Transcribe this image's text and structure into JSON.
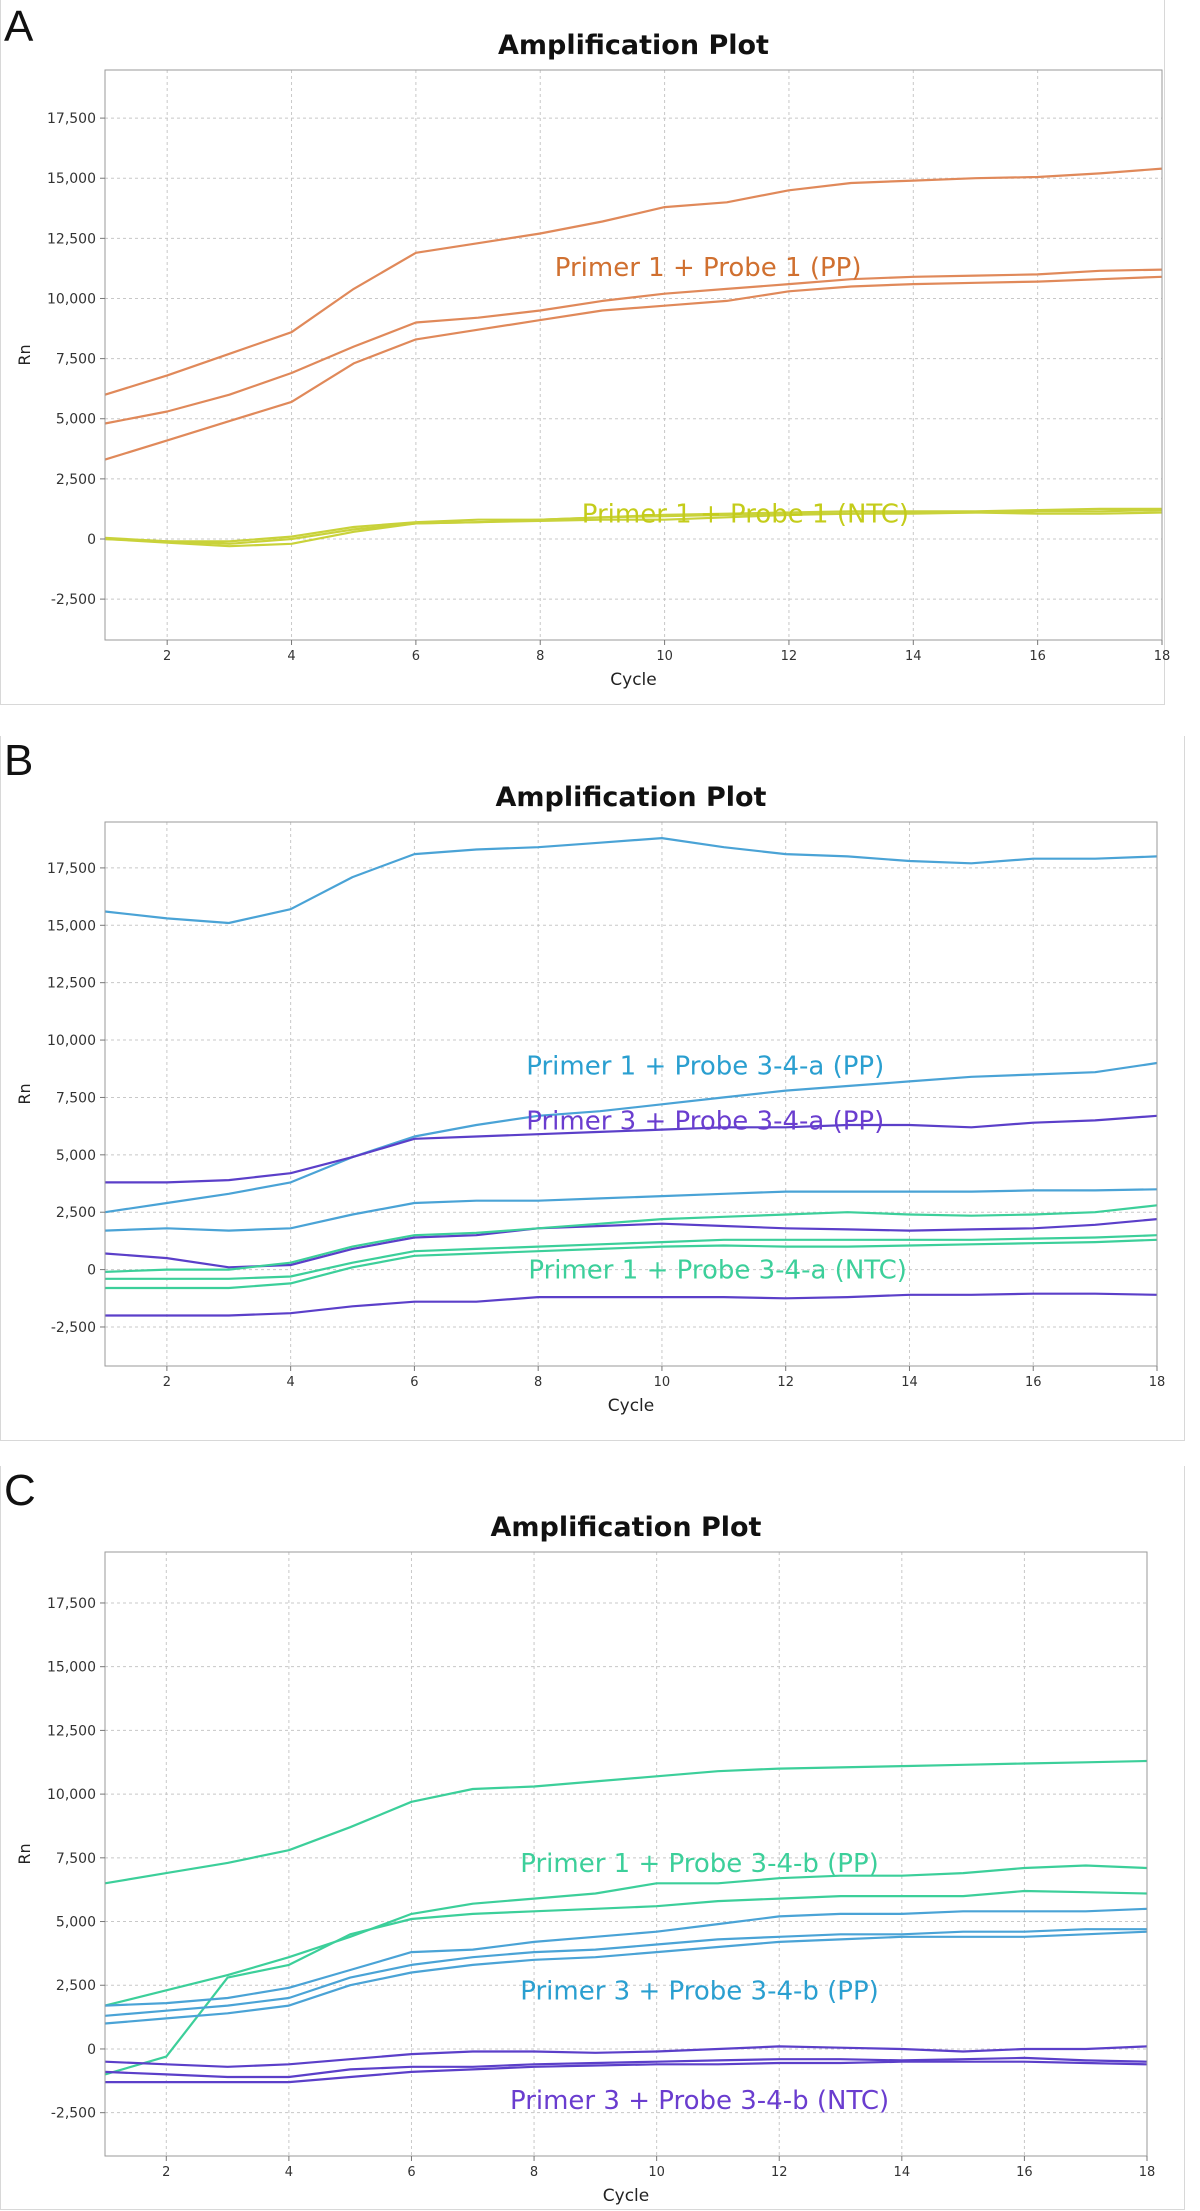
{
  "chart_data": [
    {
      "type": "line",
      "panel_label": "A",
      "title": "Amplification Plot",
      "xlabel": "Cycle",
      "ylabel": "Rn",
      "xlim": [
        1,
        18
      ],
      "ylim": [
        -4200,
        19500
      ],
      "xticks": [
        2,
        4,
        6,
        8,
        10,
        12,
        14,
        16,
        18
      ],
      "yticks": [
        -2500,
        0,
        2500,
        5000,
        7500,
        10000,
        12500,
        15000,
        17500
      ],
      "ytick_labels": [
        "-2,500",
        "0",
        "2,500",
        "5,000",
        "7,500",
        "10,000",
        "12,500",
        "15,000",
        "17,500"
      ],
      "grid": true,
      "annotations": [
        {
          "text": "Primer 1 + Probe 1 (PP)",
          "x": 10.7,
          "y": 11300,
          "color": "#d07030"
        },
        {
          "text": "Primer 1 + Probe 1 (NTC)",
          "x": 11.3,
          "y": 1050,
          "color": "#c4cc1a"
        }
      ],
      "x": [
        1,
        2,
        3,
        4,
        5,
        6,
        7,
        8,
        9,
        10,
        11,
        12,
        13,
        14,
        15,
        16,
        17,
        18
      ],
      "series": [
        {
          "color": "#e0895a",
          "values": [
            6000,
            6800,
            7700,
            8600,
            10400,
            11900,
            12300,
            12700,
            13200,
            13800,
            14000,
            14500,
            14800,
            14900,
            15000,
            15050,
            15200,
            15400
          ]
        },
        {
          "color": "#e0895a",
          "values": [
            4800,
            5300,
            6000,
            6900,
            8000,
            9000,
            9200,
            9500,
            9900,
            10200,
            10400,
            10600,
            10800,
            10900,
            10950,
            11000,
            11150,
            11200
          ]
        },
        {
          "color": "#e0895a",
          "values": [
            3300,
            4100,
            4900,
            5700,
            7300,
            8300,
            8700,
            9100,
            9500,
            9700,
            9900,
            10300,
            10500,
            10600,
            10650,
            10700,
            10800,
            10900
          ]
        },
        {
          "color": "#c9d23a",
          "values": [
            0,
            -100,
            -100,
            100,
            500,
            700,
            800,
            800,
            900,
            1000,
            1050,
            1100,
            1150,
            1150,
            1150,
            1200,
            1250,
            1250
          ]
        },
        {
          "color": "#c9d23a",
          "values": [
            0,
            -150,
            -300,
            -200,
            300,
            650,
            700,
            750,
            800,
            800,
            900,
            1000,
            1050,
            1050,
            1100,
            1150,
            1150,
            1200
          ]
        },
        {
          "color": "#c9d23a",
          "values": [
            50,
            -100,
            -200,
            0,
            400,
            650,
            700,
            800,
            900,
            950,
            1000,
            1050,
            1050,
            1100,
            1100,
            1050,
            1050,
            1100
          ]
        }
      ]
    },
    {
      "type": "line",
      "panel_label": "B",
      "title": "Amplification Plot",
      "xlabel": "Cycle",
      "ylabel": "Rn",
      "xlim": [
        1,
        18
      ],
      "ylim": [
        -4200,
        19500
      ],
      "xticks": [
        2,
        4,
        6,
        8,
        10,
        12,
        14,
        16,
        18
      ],
      "yticks": [
        -2500,
        0,
        2500,
        5000,
        7500,
        10000,
        12500,
        15000,
        17500
      ],
      "ytick_labels": [
        "-2,500",
        "0",
        "2,500",
        "5,000",
        "7,500",
        "10,000",
        "12,500",
        "15,000",
        "17,500"
      ],
      "grid": true,
      "annotations": [
        {
          "text": "Primer 1 + Probe 3-4-a (PP)",
          "x": 10.7,
          "y": 8900,
          "color": "#2a9fd0"
        },
        {
          "text": "Primer 3 + Probe 3-4-a (PP)",
          "x": 10.7,
          "y": 6500,
          "color": "#6a3dcf"
        },
        {
          "text": "Primer 1 + Probe 3-4-a (NTC)",
          "x": 10.9,
          "y": 0,
          "color": "#3ccf9a"
        }
      ],
      "x": [
        1,
        2,
        3,
        4,
        5,
        6,
        7,
        8,
        9,
        10,
        11,
        12,
        13,
        14,
        15,
        16,
        17,
        18
      ],
      "series": [
        {
          "color": "#4aa3d6",
          "values": [
            15600,
            15300,
            15100,
            15700,
            17100,
            18100,
            18300,
            18400,
            18600,
            18800,
            18400,
            18100,
            18000,
            17800,
            17700,
            17900,
            17900,
            18000
          ]
        },
        {
          "color": "#4aa3d6",
          "values": [
            2500,
            2900,
            3300,
            3800,
            4900,
            5800,
            6300,
            6700,
            6900,
            7200,
            7500,
            7800,
            8000,
            8200,
            8400,
            8500,
            8600,
            9000
          ]
        },
        {
          "color": "#5b3fc9",
          "values": [
            3800,
            3800,
            3900,
            4200,
            4900,
            5700,
            5800,
            5900,
            6000,
            6100,
            6200,
            6200,
            6300,
            6300,
            6200,
            6400,
            6500,
            6700
          ]
        },
        {
          "color": "#4aa3d6",
          "values": [
            1700,
            1800,
            1700,
            1800,
            2400,
            2900,
            3000,
            3000,
            3100,
            3200,
            3300,
            3400,
            3400,
            3400,
            3400,
            3450,
            3450,
            3500
          ]
        },
        {
          "color": "#5b3fc9",
          "values": [
            700,
            500,
            100,
            200,
            900,
            1400,
            1500,
            1800,
            1900,
            2000,
            1900,
            1800,
            1750,
            1700,
            1750,
            1800,
            1950,
            2200
          ]
        },
        {
          "color": "#3ccf9a",
          "values": [
            -100,
            0,
            0,
            300,
            1000,
            1500,
            1600,
            1800,
            2000,
            2200,
            2300,
            2400,
            2500,
            2400,
            2350,
            2400,
            2500,
            2800
          ]
        },
        {
          "color": "#3ccf9a",
          "values": [
            -400,
            -400,
            -400,
            -300,
            300,
            800,
            900,
            1000,
            1100,
            1200,
            1300,
            1300,
            1300,
            1300,
            1300,
            1350,
            1400,
            1500
          ]
        },
        {
          "color": "#3ccf9a",
          "values": [
            -800,
            -800,
            -800,
            -600,
            100,
            600,
            700,
            800,
            900,
            1000,
            1050,
            1000,
            1000,
            1050,
            1100,
            1150,
            1200,
            1300
          ]
        },
        {
          "color": "#5b3fc9",
          "values": [
            -2000,
            -2000,
            -2000,
            -1900,
            -1600,
            -1400,
            -1400,
            -1200,
            -1200,
            -1200,
            -1200,
            -1250,
            -1200,
            -1100,
            -1100,
            -1050,
            -1050,
            -1100
          ]
        }
      ]
    },
    {
      "type": "line",
      "panel_label": "C",
      "title": "Amplification Plot",
      "xlabel": "Cycle",
      "ylabel": "Rn",
      "xlim": [
        1,
        18
      ],
      "ylim": [
        -4200,
        19500
      ],
      "xticks": [
        2,
        4,
        6,
        8,
        10,
        12,
        14,
        16,
        18
      ],
      "yticks": [
        -2500,
        0,
        2500,
        5000,
        7500,
        10000,
        12500,
        15000,
        17500
      ],
      "ytick_labels": [
        "-2,500",
        "0",
        "2,500",
        "5,000",
        "7,500",
        "10,000",
        "12,500",
        "15,000",
        "17,500"
      ],
      "grid": true,
      "annotations": [
        {
          "text": "Primer 1 + Probe 3-4-b (PP)",
          "x": 10.7,
          "y": 7300,
          "color": "#3ccf9a"
        },
        {
          "text": "Primer 3 + Probe 3-4-b (PP)",
          "x": 10.7,
          "y": 2300,
          "color": "#2a9fd0"
        },
        {
          "text": "Primer 3 + Probe 3-4-b (NTC)",
          "x": 10.7,
          "y": -2000,
          "color": "#6a3dcf"
        }
      ],
      "x": [
        1,
        2,
        3,
        4,
        5,
        6,
        7,
        8,
        9,
        10,
        11,
        12,
        13,
        14,
        15,
        16,
        17,
        18
      ],
      "series": [
        {
          "color": "#3ccf9a",
          "values": [
            6500,
            6900,
            7300,
            7800,
            8700,
            9700,
            10200,
            10300,
            10500,
            10700,
            10900,
            11000,
            11050,
            11100,
            11150,
            11200,
            11250,
            11300
          ]
        },
        {
          "color": "#3ccf9a",
          "values": [
            1700,
            2300,
            2900,
            3600,
            4400,
            5300,
            5700,
            5900,
            6100,
            6500,
            6500,
            6700,
            6800,
            6800,
            6900,
            7100,
            7200,
            7100
          ]
        },
        {
          "color": "#3ccf9a",
          "values": [
            -1000,
            -300,
            2800,
            3300,
            4500,
            5100,
            5300,
            5400,
            5500,
            5600,
            5800,
            5900,
            6000,
            6000,
            6000,
            6200,
            6150,
            6100
          ]
        },
        {
          "color": "#4aa3d6",
          "values": [
            1700,
            1800,
            2000,
            2400,
            3100,
            3800,
            3900,
            4200,
            4400,
            4600,
            4900,
            5200,
            5300,
            5300,
            5400,
            5400,
            5400,
            5500
          ]
        },
        {
          "color": "#4aa3d6",
          "values": [
            1300,
            1500,
            1700,
            2000,
            2800,
            3300,
            3600,
            3800,
            3900,
            4100,
            4300,
            4400,
            4500,
            4500,
            4600,
            4600,
            4700,
            4700
          ]
        },
        {
          "color": "#4aa3d6",
          "values": [
            1000,
            1200,
            1400,
            1700,
            2500,
            3000,
            3300,
            3500,
            3600,
            3800,
            4000,
            4200,
            4300,
            4400,
            4400,
            4400,
            4500,
            4600
          ]
        },
        {
          "color": "#5b3fc9",
          "values": [
            -500,
            -600,
            -700,
            -600,
            -400,
            -200,
            -100,
            -100,
            -150,
            -100,
            0,
            100,
            50,
            0,
            -100,
            0,
            0,
            100
          ]
        },
        {
          "color": "#5b3fc9",
          "values": [
            -900,
            -1000,
            -1100,
            -1100,
            -800,
            -700,
            -700,
            -600,
            -550,
            -500,
            -450,
            -400,
            -400,
            -450,
            -400,
            -350,
            -450,
            -500
          ]
        },
        {
          "color": "#5b3fc9",
          "values": [
            -1300,
            -1300,
            -1300,
            -1300,
            -1100,
            -900,
            -800,
            -700,
            -650,
            -600,
            -600,
            -550,
            -550,
            -500,
            -500,
            -500,
            -550,
            -600
          ]
        }
      ]
    }
  ]
}
